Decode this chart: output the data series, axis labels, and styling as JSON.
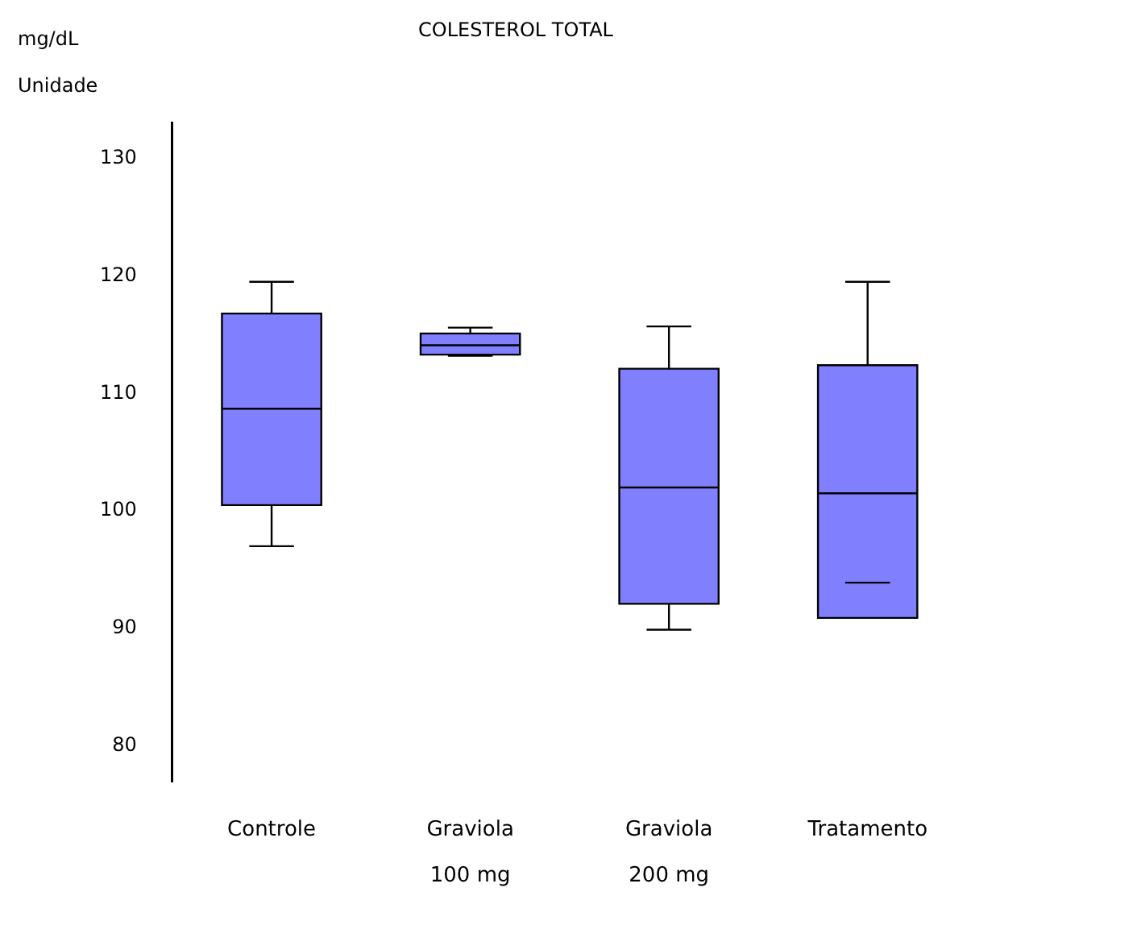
{
  "chart_data": {
    "type": "box",
    "title": "COLESTEROL TOTAL",
    "ylabel": "mg/dL\nUnidade",
    "categories": [
      "Controle",
      "Graviola\n100 mg",
      "Graviola\n200 mg",
      "Tratamento"
    ],
    "color": "#8080ff",
    "boxes": [
      {
        "low": 97.0,
        "q1": 100.5,
        "median": 108.7,
        "q3": 116.8,
        "high": 119.5
      },
      {
        "low": 113.2,
        "q1": 113.3,
        "median": 114.1,
        "q3": 115.1,
        "high": 115.6
      },
      {
        "low": 89.9,
        "q1": 92.1,
        "median": 102.0,
        "q3": 112.1,
        "high": 115.7
      },
      {
        "low": 90.9,
        "q1": 90.9,
        "median": 101.5,
        "q3": 112.4,
        "high": 119.5,
        "mean": 93.9
      }
    ],
    "ylim": [
      77,
      133
    ],
    "yticks": [
      80,
      90,
      100,
      110,
      120,
      130
    ]
  }
}
